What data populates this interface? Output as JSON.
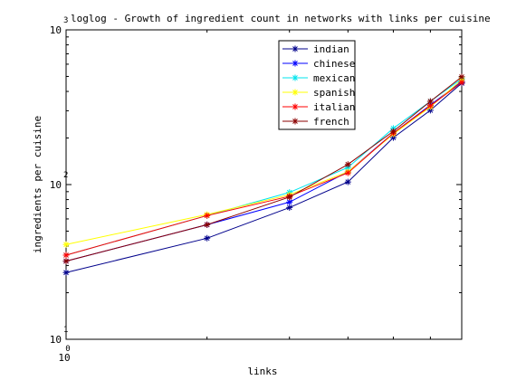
{
  "chart_data": {
    "type": "line",
    "title": "loglog - Growth of ingredient count in networks with links per cuisine",
    "x_label": "links",
    "y_label": "ingredients per cuisine",
    "log_x": true,
    "log_y": true,
    "xlim": [
      1,
      7
    ],
    "xticks": [
      {
        "value": 1,
        "label": "10",
        "exponent": "0"
      }
    ],
    "ylim": [
      10,
      1000
    ],
    "yticks": [
      {
        "value": 10,
        "label": "10",
        "exponent": "1"
      },
      {
        "value": 100,
        "label": "10",
        "exponent": "2"
      },
      {
        "value": 1000,
        "label": "10",
        "exponent": "3"
      }
    ],
    "legend_position": "top",
    "x": [
      1,
      2,
      3,
      4,
      5,
      6,
      7
    ],
    "series": [
      {
        "name": "indian",
        "color": "#00008b",
        "values": [
          27,
          45,
          71,
          104,
          201,
          302,
          452
        ]
      },
      {
        "name": "chinese",
        "color": "#0000ff",
        "values": [
          32,
          55,
          77,
          121,
          215,
          327,
          464
        ]
      },
      {
        "name": "mexican",
        "color": "#00e5ee",
        "values": [
          35,
          63,
          89,
          129,
          231,
          345,
          483
        ]
      },
      {
        "name": "spanish",
        "color": "#ffff00",
        "values": [
          41,
          64,
          86,
          121,
          212,
          318,
          476
        ]
      },
      {
        "name": "italian",
        "color": "#ff0000",
        "values": [
          35,
          63,
          84,
          119,
          215,
          323,
          458
        ]
      },
      {
        "name": "french",
        "color": "#8b0000",
        "values": [
          32,
          55,
          83,
          135,
          221,
          345,
          497
        ]
      }
    ]
  }
}
